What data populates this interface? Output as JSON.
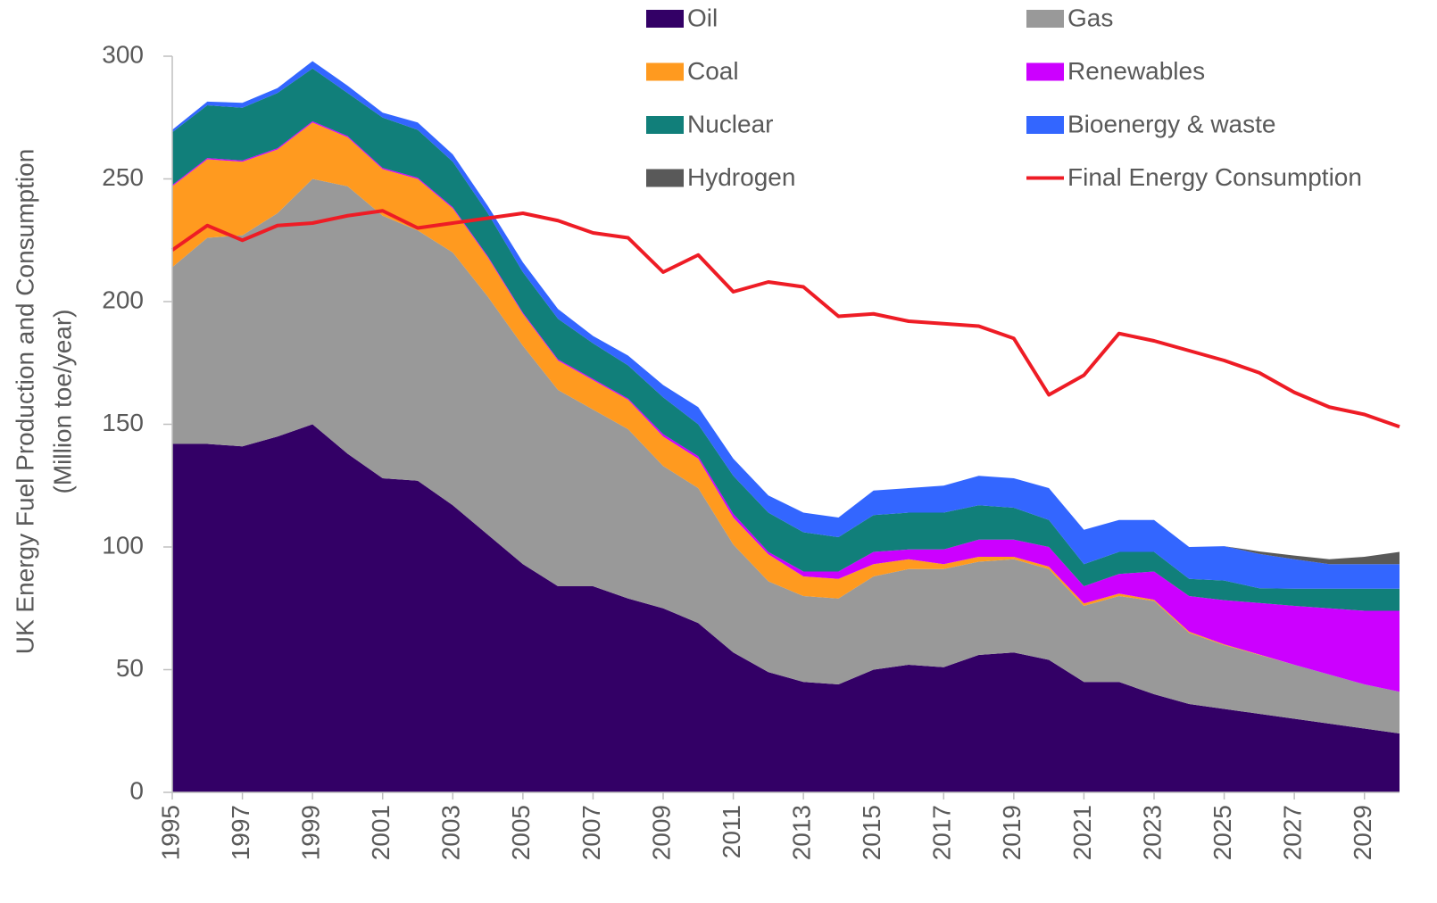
{
  "chart_data": {
    "type": "stacked_area",
    "ylabel": [
      "UK  Energy Fuel Production and Consumption",
      "(Million toe/year)"
    ],
    "x": [
      1995,
      1996,
      1997,
      1998,
      1999,
      2000,
      2001,
      2002,
      2003,
      2004,
      2005,
      2006,
      2007,
      2008,
      2009,
      2010,
      2011,
      2012,
      2013,
      2014,
      2015,
      2016,
      2017,
      2018,
      2019,
      2020,
      2021,
      2022,
      2023,
      2024,
      2025,
      2026,
      2027,
      2028,
      2029,
      2030
    ],
    "xlim": [
      1995,
      2030
    ],
    "xticks": [
      1995,
      1997,
      1999,
      2001,
      2003,
      2005,
      2007,
      2009,
      2011,
      2013,
      2015,
      2017,
      2019,
      2021,
      2023,
      2025,
      2027,
      2029
    ],
    "ylim": [
      0,
      300
    ],
    "yticks": [
      0,
      50,
      100,
      150,
      200,
      250,
      300
    ],
    "grid": false,
    "legend": "top",
    "series": [
      {
        "name": "Oil",
        "color": "#330066",
        "values": [
          142,
          142,
          141,
          145,
          150,
          138,
          128,
          127,
          117,
          105,
          93,
          84,
          84,
          79,
          75,
          69,
          57,
          49,
          45,
          44,
          50,
          52,
          51,
          56,
          57,
          54,
          45,
          45,
          40,
          36,
          34,
          32,
          30,
          28,
          26,
          24
        ]
      },
      {
        "name": "Gas",
        "color": "#999999",
        "values": [
          72,
          84,
          86,
          91,
          100,
          109,
          107,
          102,
          103,
          97,
          89,
          80,
          72,
          69,
          58,
          55,
          44,
          37,
          35,
          35,
          38,
          39,
          40,
          38,
          38,
          37,
          31,
          35,
          38,
          29,
          26,
          24,
          22,
          20,
          18,
          17
        ]
      },
      {
        "name": "Coal",
        "color": "#ff9a1f",
        "values": [
          33,
          32,
          30,
          26,
          23,
          20,
          19,
          21,
          18,
          16,
          13,
          12,
          12,
          12,
          12,
          12,
          11,
          11,
          8,
          8,
          5,
          4,
          2,
          2,
          1,
          1,
          1,
          1,
          0.5,
          0.5,
          0.3,
          0.2,
          0,
          0,
          0,
          0
        ]
      },
      {
        "name": "Renewables",
        "color": "#cc00ff",
        "values": [
          0.5,
          0.5,
          0.5,
          0.5,
          0.5,
          0.5,
          0.5,
          0.5,
          0.5,
          0.5,
          0.5,
          0.5,
          0.5,
          0.5,
          1,
          1,
          1.5,
          1,
          2,
          3,
          5,
          4,
          6,
          7,
          7,
          8,
          7,
          8,
          11.5,
          14.5,
          18,
          21,
          24,
          27,
          30,
          33
        ]
      },
      {
        "name": "Nuclear",
        "color": "#117f7a",
        "values": [
          21.5,
          21.5,
          21.5,
          22.5,
          21.5,
          17.5,
          20.5,
          19.5,
          18.5,
          17.5,
          16.5,
          16.5,
          14.5,
          13.5,
          15,
          13,
          15.5,
          16,
          16,
          14,
          15,
          15,
          15,
          14,
          13,
          11,
          9,
          9,
          8,
          7,
          8,
          6,
          7,
          8,
          9,
          9
        ]
      },
      {
        "name": "Bioenergy & waste",
        "color": "#3366ff",
        "values": [
          1,
          1.5,
          2,
          2,
          3,
          3,
          2,
          3,
          3,
          3,
          4,
          4,
          3,
          4,
          5,
          7,
          7,
          7,
          8,
          8,
          10,
          10,
          11,
          12,
          12,
          13,
          14,
          13,
          13,
          13,
          14,
          14,
          12,
          10,
          10,
          10
        ]
      },
      {
        "name": "Hydrogen",
        "color": "#595959",
        "values": [
          0,
          0,
          0,
          0,
          0,
          0,
          0,
          0,
          0,
          0,
          0,
          0,
          0,
          0,
          0,
          0,
          0,
          0,
          0,
          0,
          0,
          0,
          0,
          0,
          0,
          0,
          0,
          0,
          0,
          0,
          0,
          1,
          1.5,
          2,
          3,
          5
        ]
      }
    ],
    "line": {
      "name": "Final Energy Consumption",
      "color": "#ee1c25",
      "values": [
        221,
        231,
        225,
        231,
        232,
        235,
        237,
        230,
        232,
        234,
        236,
        233,
        228,
        226,
        212,
        219,
        204,
        208,
        206,
        194,
        195,
        192,
        191,
        190,
        185,
        162,
        170,
        187,
        184,
        180,
        176,
        171,
        163,
        157,
        154,
        149
      ]
    }
  }
}
